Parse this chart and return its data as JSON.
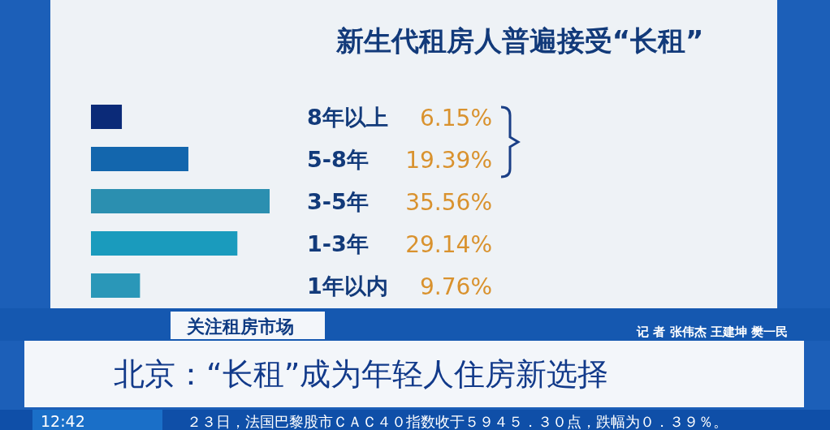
{
  "chart_data": {
    "type": "bar",
    "orientation": "horizontal",
    "title": "新生代租房人普遍接受“长租”",
    "categories": [
      "8年以上",
      "5-8年",
      "3-5年",
      "1-3年",
      "1年以内"
    ],
    "values": [
      6.15,
      19.39,
      35.56,
      29.14,
      9.76
    ],
    "colors": [
      "#0b2a78",
      "#1366ad",
      "#2b8fb0",
      "#1a9bbd",
      "#2a97b8"
    ],
    "value_labels": [
      "6.15%",
      "19.39%",
      "35.56%",
      "29.14%",
      "9.76%"
    ],
    "annotations": [
      "关注租房市场",
      "记 者 张伟杰 王建坤 樊一民",
      "北京：“长租”成为年轻人住房新选择",
      "12:42",
      "２３日，法国巴黎股市ＣＡＣ４０指数收于５９４５．３０点，跌幅为０．３９％。"
    ]
  }
}
